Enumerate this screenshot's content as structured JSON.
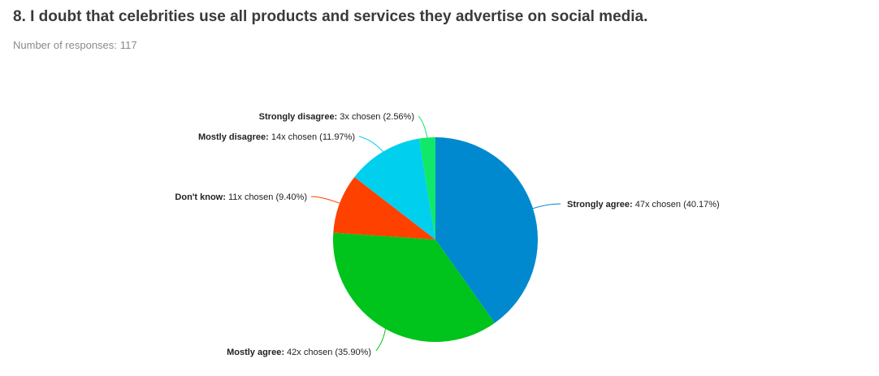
{
  "question": {
    "title": "8. I doubt that celebrities use all products and services they advertise on social media.",
    "responses_label": "Number of responses:",
    "responses_count": "117"
  },
  "chart_data": {
    "type": "pie",
    "total_responses": 117,
    "slices": [
      {
        "name": "Strongly agree:",
        "detail": "47x chosen (40.17%)",
        "count": 47,
        "percent": 40.17,
        "color": "#0089cf"
      },
      {
        "name": "Mostly agree:",
        "detail": "42x chosen (35.90%)",
        "count": 42,
        "percent": 35.9,
        "color": "#00c31b"
      },
      {
        "name": "Don't know:",
        "detail": "11x chosen (9.40%)",
        "count": 11,
        "percent": 9.4,
        "color": "#ff4100"
      },
      {
        "name": "Mostly disagree:",
        "detail": "14x chosen (11.97%)",
        "count": 14,
        "percent": 11.97,
        "color": "#00cfee"
      },
      {
        "name": "Strongly disagree:",
        "detail": "3x chosen (2.56%)",
        "count": 3,
        "percent": 2.56,
        "color": "#10e86a"
      }
    ]
  }
}
